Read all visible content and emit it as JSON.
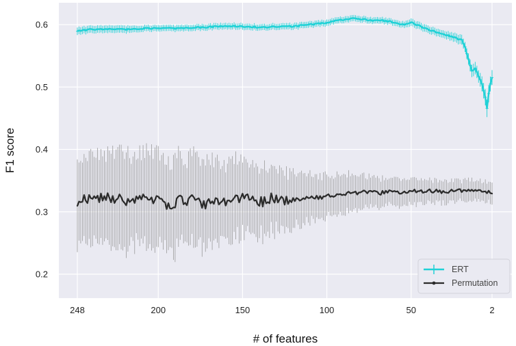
{
  "chart_data": {
    "type": "line",
    "title": "",
    "xlabel": "# of features",
    "ylabel": "F1 score",
    "x_direction": "reversed",
    "xlim": [
      250,
      0
    ],
    "ylim": [
      0.17,
      0.64
    ],
    "xticks": [
      248,
      200,
      150,
      100,
      50,
      2
    ],
    "xtick_labels": [
      "248",
      "200",
      "150",
      "100",
      "50",
      "2"
    ],
    "yticks": [
      0.2,
      0.3,
      0.4,
      0.5,
      0.6
    ],
    "ytick_labels": [
      "0.2",
      "0.3",
      "0.4",
      "0.5",
      "0.6"
    ],
    "grid": true,
    "legend_position": "lower-right",
    "background_color": "#eaeaf2",
    "series": [
      {
        "name": "ERT",
        "color": "#1fd1d6",
        "marker": "+",
        "error_bars": true,
        "x": [
          248,
          240,
          230,
          220,
          210,
          200,
          190,
          180,
          170,
          160,
          150,
          140,
          130,
          120,
          110,
          100,
          95,
          90,
          85,
          80,
          75,
          70,
          65,
          60,
          55,
          50,
          45,
          40,
          35,
          30,
          25,
          20,
          18,
          16,
          14,
          12,
          10,
          8,
          6,
          5,
          4,
          3,
          2
        ],
        "values": [
          0.59,
          0.592,
          0.593,
          0.592,
          0.594,
          0.594,
          0.594,
          0.595,
          0.596,
          0.598,
          0.597,
          0.596,
          0.597,
          0.597,
          0.6,
          0.603,
          0.606,
          0.608,
          0.61,
          0.609,
          0.607,
          0.607,
          0.606,
          0.603,
          0.6,
          0.603,
          0.598,
          0.592,
          0.588,
          0.584,
          0.58,
          0.575,
          0.563,
          0.545,
          0.525,
          0.53,
          0.518,
          0.505,
          0.483,
          0.465,
          0.49,
          0.505,
          0.515
        ],
        "errors": [
          0.006,
          0.006,
          0.006,
          0.006,
          0.005,
          0.005,
          0.005,
          0.005,
          0.005,
          0.005,
          0.005,
          0.005,
          0.005,
          0.005,
          0.005,
          0.005,
          0.005,
          0.005,
          0.005,
          0.005,
          0.005,
          0.005,
          0.005,
          0.005,
          0.005,
          0.006,
          0.006,
          0.006,
          0.006,
          0.006,
          0.007,
          0.008,
          0.008,
          0.009,
          0.01,
          0.01,
          0.01,
          0.012,
          0.013,
          0.014,
          0.014,
          0.012,
          0.012
        ]
      },
      {
        "name": "Permutation",
        "color": "#2a2a2a",
        "marker": ".",
        "error_bars": true,
        "error_color": "#9a9a9a",
        "x": [
          248,
          243,
          238,
          233,
          228,
          223,
          218,
          213,
          208,
          203,
          198,
          193,
          188,
          183,
          178,
          173,
          168,
          163,
          158,
          153,
          148,
          143,
          138,
          133,
          128,
          123,
          118,
          113,
          108,
          103,
          98,
          93,
          88,
          83,
          78,
          73,
          68,
          63,
          58,
          53,
          48,
          43,
          38,
          33,
          28,
          23,
          18,
          13,
          8,
          3
        ],
        "values": [
          0.315,
          0.322,
          0.318,
          0.325,
          0.322,
          0.32,
          0.316,
          0.318,
          0.322,
          0.32,
          0.315,
          0.305,
          0.32,
          0.318,
          0.322,
          0.31,
          0.316,
          0.318,
          0.314,
          0.322,
          0.325,
          0.318,
          0.316,
          0.322,
          0.32,
          0.318,
          0.32,
          0.322,
          0.324,
          0.322,
          0.326,
          0.328,
          0.329,
          0.33,
          0.332,
          0.332,
          0.33,
          0.333,
          0.33,
          0.332,
          0.333,
          0.333,
          0.334,
          0.332,
          0.333,
          0.334,
          0.333,
          0.334,
          0.332,
          0.331
        ],
        "errors": [
          0.075,
          0.075,
          0.075,
          0.078,
          0.08,
          0.08,
          0.078,
          0.078,
          0.08,
          0.08,
          0.078,
          0.082,
          0.078,
          0.078,
          0.076,
          0.074,
          0.072,
          0.07,
          0.068,
          0.066,
          0.062,
          0.06,
          0.058,
          0.055,
          0.052,
          0.048,
          0.045,
          0.042,
          0.04,
          0.038,
          0.035,
          0.034,
          0.032,
          0.03,
          0.028,
          0.026,
          0.025,
          0.024,
          0.023,
          0.022,
          0.022,
          0.021,
          0.02,
          0.02,
          0.019,
          0.019,
          0.018,
          0.018,
          0.018,
          0.018
        ]
      }
    ]
  }
}
